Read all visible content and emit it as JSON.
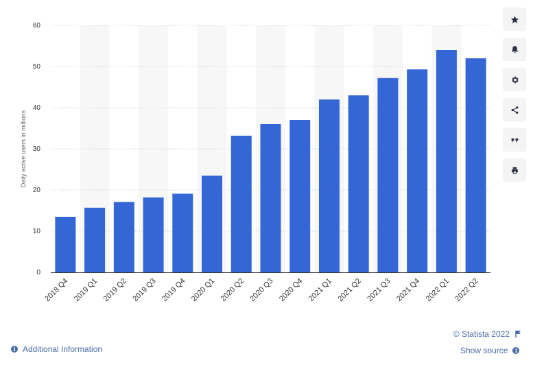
{
  "chart_data": {
    "type": "bar",
    "title": "",
    "xlabel": "",
    "ylabel": "Daily active users in millions",
    "ylim": [
      0,
      60
    ],
    "yticks": [
      0,
      10,
      20,
      30,
      40,
      50,
      60
    ],
    "grid": true,
    "categories": [
      "2018 Q4",
      "2019 Q1",
      "2019 Q2",
      "2019 Q3",
      "2019 Q4",
      "2020 Q1",
      "2020 Q2",
      "2020 Q3",
      "2020 Q4",
      "2021 Q1",
      "2021 Q2",
      "2021 Q3",
      "2021 Q4",
      "2022 Q1",
      "2022 Q2"
    ],
    "values": [
      13.5,
      15.7,
      17.1,
      18.2,
      19.1,
      23.5,
      33.2,
      36.0,
      37.0,
      42.0,
      43.0,
      47.2,
      49.3,
      54.0,
      52.0
    ],
    "bar_color": "#3566d6",
    "band_color": "#f7f7f7"
  },
  "sidebar": {
    "buttons": [
      {
        "icon": "star-icon"
      },
      {
        "icon": "bell-icon"
      },
      {
        "icon": "gear-icon"
      },
      {
        "icon": "share-icon"
      },
      {
        "icon": "quote-icon"
      },
      {
        "icon": "print-icon"
      }
    ]
  },
  "footer": {
    "additional_info": "Additional Information",
    "copyright": "© Statista 2022",
    "show_source": "Show source"
  }
}
